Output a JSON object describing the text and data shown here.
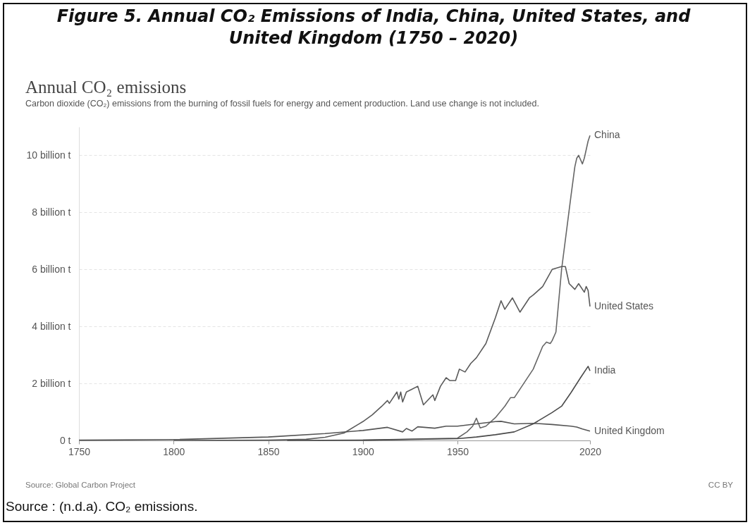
{
  "chart_data": {
    "type": "line",
    "title": "Figure 5. Annual CO₂ Emissions of India, China, United States, and United Kingdom (1750 – 2020)",
    "subtitle": "Annual CO₂ emissions",
    "annotations": [
      "Carbon dioxide (CO₂) emissions from the burning of fossil fuels for energy and cement production. Land use change is not included.",
      "Source: Global Carbon Project",
      "CC BY",
      "Source : (n.d.a). CO₂ emissions."
    ],
    "xlim": [
      1750,
      2020
    ],
    "xticks": [
      1750,
      1800,
      1850,
      1900,
      1950,
      2020
    ],
    "ylim": [
      0,
      11
    ],
    "yticks": [
      {
        "value": 0,
        "label": "0 t"
      },
      {
        "value": 2,
        "label": "2 billion t"
      },
      {
        "value": 4,
        "label": "4 billion t"
      },
      {
        "value": 6,
        "label": "6 billion t"
      },
      {
        "value": 8,
        "label": "8 billion t"
      },
      {
        "value": 10,
        "label": "10 billion t"
      }
    ],
    "grid": "y",
    "series": [
      {
        "name": "China",
        "color": "#666666",
        "x": [
          1900,
          1950,
          1955,
          1958,
          1960,
          1962,
          1965,
          1970,
          1975,
          1978,
          1980,
          1985,
          1990,
          1995,
          1997,
          1999,
          2000,
          2002,
          2005,
          2010,
          2012,
          2013,
          2014,
          2016,
          2017,
          2019,
          2020
        ],
        "values": [
          0.01,
          0.08,
          0.3,
          0.5,
          0.78,
          0.44,
          0.5,
          0.8,
          1.2,
          1.5,
          1.5,
          2.0,
          2.5,
          3.3,
          3.45,
          3.4,
          3.5,
          3.8,
          6.0,
          8.6,
          9.6,
          9.9,
          10.0,
          9.7,
          9.9,
          10.5,
          10.7
        ]
      },
      {
        "name": "United States",
        "color": "#5a5a5a",
        "x": [
          1800,
          1850,
          1870,
          1880,
          1890,
          1900,
          1905,
          1910,
          1913,
          1914,
          1918,
          1919,
          1920,
          1921,
          1923,
          1926,
          1929,
          1932,
          1937,
          1938,
          1941,
          1944,
          1946,
          1949,
          1951,
          1954,
          1957,
          1960,
          1965,
          1970,
          1973,
          1975,
          1979,
          1983,
          1988,
          1990,
          1995,
          2000,
          2005,
          2007,
          2009,
          2012,
          2014,
          2017,
          2018,
          2019,
          2020
        ],
        "values": [
          0,
          0.01,
          0.04,
          0.11,
          0.26,
          0.66,
          0.9,
          1.2,
          1.4,
          1.3,
          1.7,
          1.45,
          1.7,
          1.35,
          1.7,
          1.8,
          1.9,
          1.25,
          1.6,
          1.4,
          1.9,
          2.2,
          2.1,
          2.1,
          2.5,
          2.4,
          2.7,
          2.9,
          3.4,
          4.3,
          4.9,
          4.6,
          5.0,
          4.5,
          5.0,
          5.1,
          5.4,
          6.0,
          6.1,
          6.1,
          5.5,
          5.3,
          5.5,
          5.2,
          5.4,
          5.26,
          4.7
        ]
      },
      {
        "name": "India",
        "color": "#4a4a4a",
        "x": [
          1860,
          1900,
          1950,
          1960,
          1970,
          1980,
          1990,
          2000,
          2005,
          2010,
          2015,
          2019,
          2020
        ],
        "values": [
          0,
          0.01,
          0.06,
          0.12,
          0.2,
          0.3,
          0.58,
          0.98,
          1.2,
          1.68,
          2.2,
          2.6,
          2.44
        ]
      },
      {
        "name": "United Kingdom",
        "color": "#555555",
        "x": [
          1750,
          1800,
          1850,
          1880,
          1900,
          1913,
          1921,
          1923,
          1926,
          1929,
          1938,
          1944,
          1950,
          1960,
          1970,
          1973,
          1980,
          1990,
          2000,
          2010,
          2013,
          2016,
          2020
        ],
        "values": [
          0.01,
          0.03,
          0.12,
          0.24,
          0.35,
          0.46,
          0.3,
          0.42,
          0.33,
          0.48,
          0.43,
          0.5,
          0.5,
          0.58,
          0.66,
          0.67,
          0.58,
          0.6,
          0.56,
          0.5,
          0.47,
          0.4,
          0.33
        ]
      }
    ]
  }
}
